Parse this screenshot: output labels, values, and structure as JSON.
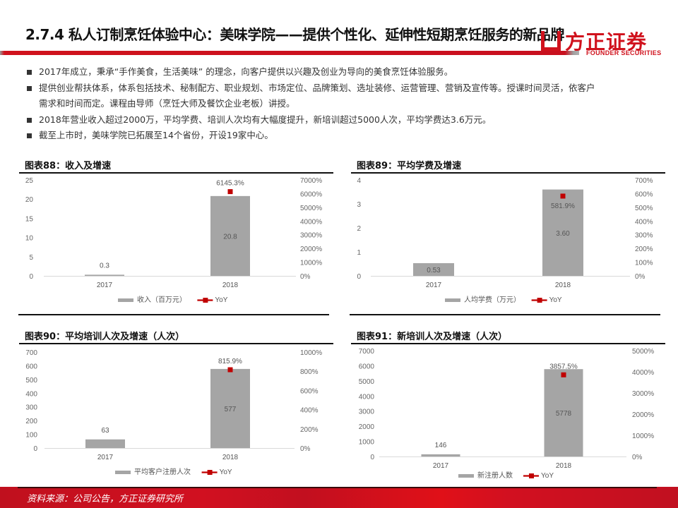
{
  "page": {
    "title": "2.7.4 私人订制烹饪体验中心：美味学院——提供个性化、延伸性短期烹饪服务的新品牌",
    "logo": {
      "cn": "方正证券",
      "en": "FOUNDER SECURITIES",
      "icon": "founder-logo-icon"
    },
    "bullets": [
      "2017年成立，秉承“手作美食，生活美味” 的理念，向客户提供以兴趣及创业为导向的美食烹饪体验服务。",
      "提供创业帮扶体系，体系包括技术、秘制配方、职业规划、市场定位、品牌策划、选址装修、运营管理、营销及宣传等。授课时间灵活，依客户",
      "需求和时间而定。课程由导师（烹饪大师及餐饮企业老板）讲授。",
      "2018年营业收入超过2000万，平均学费、培训人次均有大幅度提升，新培训超过5000人次，平均学费达3.6万元。",
      "截至上市时，美味学院已拓展至14个省份，开设19家中心。"
    ],
    "footer": "资料来源：公司公告，方正证券研究所",
    "colors": {
      "brand_red": "#d0121d",
      "bar_gray": "#a5a5a5",
      "yoy_red": "#c00000"
    }
  },
  "chart_data": [
    {
      "id": "fig88",
      "type": "bar",
      "title": "图表88：收入及增速",
      "categories": [
        "2017",
        "2018"
      ],
      "series": [
        {
          "name": "收入（百万元）",
          "type": "bar",
          "axis": "left",
          "values": [
            0.3,
            20.8
          ],
          "labels": [
            "0.3",
            "20.8"
          ]
        },
        {
          "name": "YoY",
          "type": "line-marker",
          "axis": "right",
          "values": [
            null,
            6145.3
          ],
          "labels": [
            "",
            "6145.3%"
          ]
        }
      ],
      "left_axis": {
        "min": 0,
        "max": 25,
        "ticks": [
          "0",
          "5",
          "10",
          "15",
          "20",
          "25"
        ]
      },
      "right_axis": {
        "min": 0,
        "max": 7000,
        "ticks": [
          "0%",
          "1000%",
          "2000%",
          "3000%",
          "4000%",
          "5000%",
          "6000%",
          "7000%"
        ]
      },
      "legend": [
        "收入（百万元）",
        "YoY"
      ],
      "legend_position": "bottom",
      "grid": false
    },
    {
      "id": "fig89",
      "type": "bar",
      "title": "图表89：平均学费及增速",
      "categories": [
        "2017",
        "2018"
      ],
      "series": [
        {
          "name": "人均学费（万元）",
          "type": "bar",
          "axis": "left",
          "values": [
            0.53,
            3.6
          ],
          "labels": [
            "0.53",
            "3.60"
          ]
        },
        {
          "name": "YoY",
          "type": "line-marker",
          "axis": "right",
          "values": [
            null,
            581.9
          ],
          "labels": [
            "",
            "581.9%"
          ]
        }
      ],
      "left_axis": {
        "min": 0,
        "max": 4,
        "ticks": [
          "0",
          "1",
          "2",
          "3",
          "4"
        ]
      },
      "right_axis": {
        "min": 0,
        "max": 700,
        "ticks": [
          "0%",
          "100%",
          "200%",
          "300%",
          "400%",
          "500%",
          "600%",
          "700%"
        ]
      },
      "legend": [
        "人均学费（万元）",
        "YoY"
      ],
      "legend_position": "bottom",
      "grid": false
    },
    {
      "id": "fig90",
      "type": "bar",
      "title": "图表90：平均培训人次及增速（人次）",
      "categories": [
        "2017",
        "2018"
      ],
      "series": [
        {
          "name": "平均客户注册人次",
          "type": "bar",
          "axis": "left",
          "values": [
            63,
            577
          ],
          "labels": [
            "63",
            "577"
          ]
        },
        {
          "name": "YoY",
          "type": "line-marker",
          "axis": "right",
          "values": [
            null,
            815.9
          ],
          "labels": [
            "",
            "815.9%"
          ]
        }
      ],
      "left_axis": {
        "min": 0,
        "max": 700,
        "ticks": [
          "0",
          "100",
          "200",
          "300",
          "400",
          "500",
          "600",
          "700"
        ]
      },
      "right_axis": {
        "min": 0,
        "max": 1000,
        "ticks": [
          "0%",
          "200%",
          "400%",
          "600%",
          "800%",
          "1000%"
        ]
      },
      "legend": [
        "平均客户注册人次",
        "YoY"
      ],
      "legend_position": "bottom",
      "grid": false
    },
    {
      "id": "fig91",
      "type": "bar",
      "title": "图表91：新培训人次及增速（人次）",
      "categories": [
        "2017",
        "2018"
      ],
      "series": [
        {
          "name": "新注册人数",
          "type": "bar",
          "axis": "left",
          "values": [
            146,
            5778
          ],
          "labels": [
            "146",
            "5778"
          ]
        },
        {
          "name": "YoY",
          "type": "line-marker",
          "axis": "right",
          "values": [
            null,
            3857.5
          ],
          "labels": [
            "",
            "3857.5%"
          ]
        }
      ],
      "left_axis": {
        "min": 0,
        "max": 7000,
        "ticks": [
          "0",
          "1000",
          "2000",
          "3000",
          "4000",
          "5000",
          "6000",
          "7000"
        ]
      },
      "right_axis": {
        "min": 0,
        "max": 5000,
        "ticks": [
          "0%",
          "1000%",
          "2000%",
          "3000%",
          "4000%",
          "5000%"
        ]
      },
      "legend": [
        "新注册人数",
        "YoY"
      ],
      "legend_position": "bottom",
      "grid": false
    }
  ]
}
